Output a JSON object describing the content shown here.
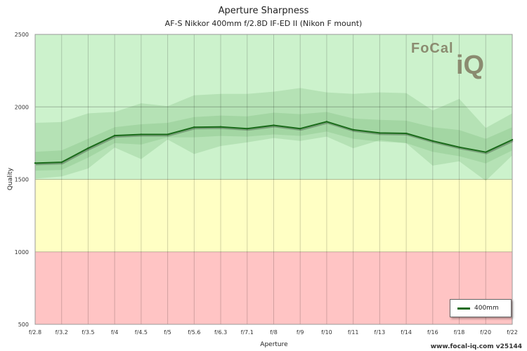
{
  "chart_data": {
    "type": "line",
    "title": "Aperture Sharpness",
    "subtitle": "AF-S Nikkor 400mm f/2.8D IF-ED II (Nikon F mount)",
    "xlabel": "Aperture",
    "ylabel": "Quality",
    "ylim": [
      500,
      2500
    ],
    "yticks": [
      500,
      1000,
      1500,
      2000,
      2500
    ],
    "categories": [
      "f/2.8",
      "f/3.2",
      "f/3.5",
      "f/4",
      "f/4.5",
      "f/5",
      "f/5.6",
      "f/6.3",
      "f/7.1",
      "f/8",
      "f/9",
      "f/10",
      "f/11",
      "f/13",
      "f/14",
      "f/16",
      "f/18",
      "f/20",
      "f/22"
    ],
    "series": [
      {
        "name": "400mm",
        "color": "#1a6b1a",
        "values": [
          1612,
          1618,
          1715,
          1802,
          1810,
          1810,
          1860,
          1862,
          1850,
          1873,
          1850,
          1898,
          1842,
          1820,
          1817,
          1765,
          1722,
          1688,
          1773
        ]
      }
    ],
    "band_outer_upper": [
      1890,
      1895,
      1955,
      1965,
      2025,
      2005,
      2080,
      2090,
      2090,
      2105,
      2130,
      2100,
      2090,
      2100,
      2095,
      1975,
      2055,
      1855,
      1955
    ],
    "band_outer_lower": [
      1505,
      1520,
      1575,
      1720,
      1640,
      1775,
      1675,
      1730,
      1755,
      1785,
      1765,
      1795,
      1715,
      1770,
      1750,
      1595,
      1625,
      1490,
      1665
    ],
    "band_inner_upper": [
      1690,
      1700,
      1780,
      1860,
      1880,
      1890,
      1930,
      1940,
      1935,
      1960,
      1950,
      1965,
      1920,
      1910,
      1905,
      1860,
      1840,
      1780,
      1860
    ],
    "band_inner_lower": [
      1560,
      1565,
      1650,
      1750,
      1740,
      1790,
      1790,
      1800,
      1795,
      1810,
      1800,
      1830,
      1780,
      1760,
      1750,
      1690,
      1660,
      1610,
      1700
    ],
    "zones": [
      {
        "from": 500,
        "to": 1000,
        "color": "#ffc4c4"
      },
      {
        "from": 1000,
        "to": 1500,
        "color": "#ffffc4"
      },
      {
        "from": 1500,
        "to": 2500,
        "color": "#ccf2cc"
      }
    ],
    "grid": true,
    "legend": "bottom-right"
  },
  "footer": "www.focal-iq.com  v25144",
  "logo": {
    "line1": "FoCal",
    "line2": "iQ"
  }
}
